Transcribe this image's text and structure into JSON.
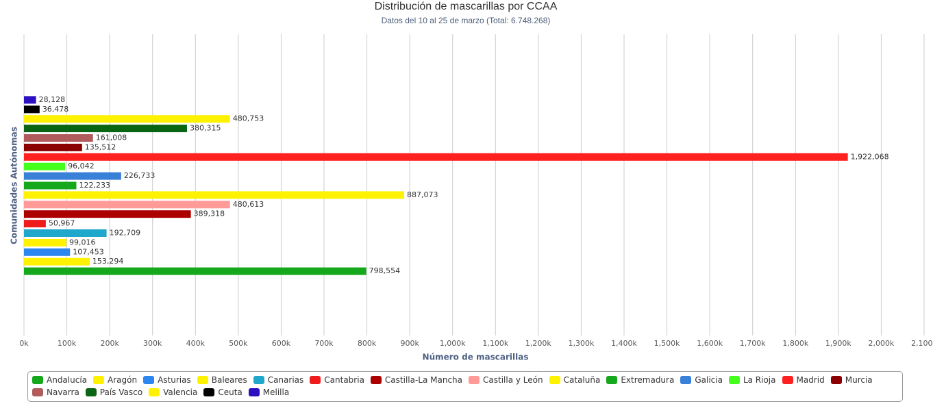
{
  "chart_data": {
    "type": "bar",
    "orientation": "horizontal",
    "title": "Distribución de mascarillas por CCAA",
    "subtitle": "Datos del 10 al 25 de marzo (Total: 6.748.268)",
    "x_label": "Número de mascarillas",
    "y_label": "Comunidades Autónomas",
    "xlim": [
      0,
      2100000
    ],
    "xticks": [
      {
        "value": 0,
        "label": "0k"
      },
      {
        "value": 100000,
        "label": "100k"
      },
      {
        "value": 200000,
        "label": "200k"
      },
      {
        "value": 300000,
        "label": "300k"
      },
      {
        "value": 400000,
        "label": "400k"
      },
      {
        "value": 500000,
        "label": "500k"
      },
      {
        "value": 600000,
        "label": "600k"
      },
      {
        "value": 700000,
        "label": "700k"
      },
      {
        "value": 800000,
        "label": "800k"
      },
      {
        "value": 900000,
        "label": "900k"
      },
      {
        "value": 1000000,
        "label": "1,000k"
      },
      {
        "value": 1100000,
        "label": "1,100k"
      },
      {
        "value": 1200000,
        "label": "1,200k"
      },
      {
        "value": 1300000,
        "label": "1,300k"
      },
      {
        "value": 1400000,
        "label": "1,400k"
      },
      {
        "value": 1500000,
        "label": "1,500k"
      },
      {
        "value": 1600000,
        "label": "1,600k"
      },
      {
        "value": 1700000,
        "label": "1,700k"
      },
      {
        "value": 1800000,
        "label": "1,800k"
      },
      {
        "value": 1900000,
        "label": "1,900k"
      },
      {
        "value": 2000000,
        "label": "2,000k"
      },
      {
        "value": 2100000,
        "label": "2,100k"
      }
    ],
    "grid": true,
    "series": [
      {
        "name": "Andalucía",
        "color": "#16a81c",
        "values": [
          798554
        ],
        "value_labels": [
          "798,554"
        ]
      },
      {
        "name": "Aragón",
        "color": "#fff200",
        "values": [
          153294
        ],
        "value_labels": [
          "153,294"
        ]
      },
      {
        "name": "Asturias",
        "color": "#2b86f0",
        "values": [
          107453
        ],
        "value_labels": [
          "107,453"
        ]
      },
      {
        "name": "Baleares",
        "color": "#fff200",
        "values": [
          99016
        ],
        "value_labels": [
          "99,016"
        ]
      },
      {
        "name": "Canarias",
        "color": "#20a8cc",
        "values": [
          192709
        ],
        "value_labels": [
          "192,709"
        ]
      },
      {
        "name": "Cantabria",
        "color": "#f01c1c",
        "values": [
          50967
        ],
        "value_labels": [
          "50,967"
        ]
      },
      {
        "name": "Castilla-La Mancha",
        "color": "#ac0000",
        "values": [
          389318
        ],
        "value_labels": [
          "389,318"
        ]
      },
      {
        "name": "Castilla y León",
        "color": "#ff9a96",
        "values": [
          480613
        ],
        "value_labels": [
          "480,613"
        ]
      },
      {
        "name": "Cataluña",
        "color": "#fff200",
        "values": [
          887073
        ],
        "value_labels": [
          "887,073"
        ]
      },
      {
        "name": "Extremadura",
        "color": "#16a81c",
        "values": [
          122233
        ],
        "value_labels": [
          "122,233"
        ]
      },
      {
        "name": "Galicia",
        "color": "#3880d8",
        "values": [
          226733
        ],
        "value_labels": [
          "226,733"
        ]
      },
      {
        "name": "La Rioja",
        "color": "#44ff1c",
        "values": [
          96042
        ],
        "value_labels": [
          "96,042"
        ]
      },
      {
        "name": "Madrid",
        "color": "#ff2020",
        "values": [
          1922068
        ],
        "value_labels": [
          "1,922,068"
        ]
      },
      {
        "name": "Murcia",
        "color": "#8b0000",
        "values": [
          135512
        ],
        "value_labels": [
          "135,512"
        ]
      },
      {
        "name": "Navarra",
        "color": "#b05c5c",
        "values": [
          161008
        ],
        "value_labels": [
          "161,008"
        ]
      },
      {
        "name": "País Vasco",
        "color": "#0a6612",
        "values": [
          380315
        ],
        "value_labels": [
          "380,315"
        ]
      },
      {
        "name": "Valencia",
        "color": "#fff200",
        "values": [
          480753
        ],
        "value_labels": [
          "480,753"
        ]
      },
      {
        "name": "Ceuta",
        "color": "#000000",
        "values": [
          36478
        ],
        "value_labels": [
          "36,478"
        ]
      },
      {
        "name": "Melilla",
        "color": "#2a10c0",
        "values": [
          28128
        ],
        "value_labels": [
          "28,128"
        ]
      }
    ]
  }
}
